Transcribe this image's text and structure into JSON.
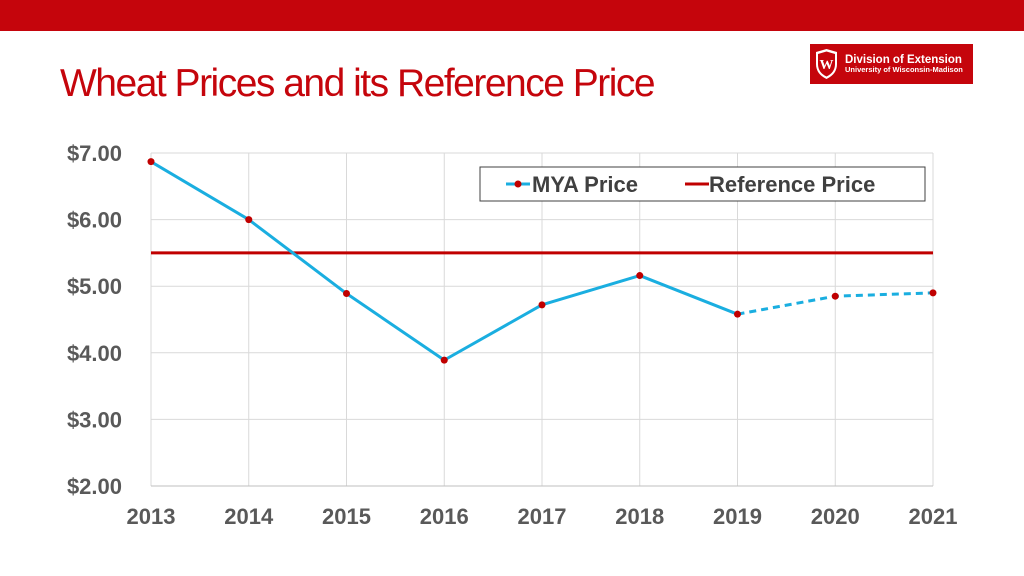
{
  "slide": {
    "title": "Wheat Prices and its Reference Price"
  },
  "logo": {
    "line1": "Division of Extension",
    "line2": "University of Wisconsin-Madison",
    "crest_letter": "W"
  },
  "colors": {
    "brand_red": "#c5050c",
    "mya_line": "#1aaee0",
    "marker": "#c00000",
    "reference_line": "#c00000",
    "grid": "#d9d9d9",
    "tick_text": "#595959"
  },
  "chart_data": {
    "type": "line",
    "x": [
      2013,
      2014,
      2015,
      2016,
      2017,
      2018,
      2019,
      2020,
      2021
    ],
    "xlim": [
      2013,
      2021
    ],
    "ylim": [
      2.0,
      7.0
    ],
    "y_ticks": [
      "$2.00",
      "$3.00",
      "$4.00",
      "$5.00",
      "$6.00",
      "$7.00"
    ],
    "x_ticks": [
      "2013",
      "2014",
      "2015",
      "2016",
      "2017",
      "2018",
      "2019",
      "2020",
      "2021"
    ],
    "grid": true,
    "legend_position": "top-right",
    "series": [
      {
        "name": "MYA Price",
        "values": [
          6.87,
          6.0,
          4.89,
          3.89,
          4.72,
          5.16,
          4.58,
          4.85,
          4.9
        ],
        "style": "solid through 2019, dashed 2019-2021",
        "dashed_from": 2019
      },
      {
        "name": "Reference Price",
        "values": [
          5.5,
          5.5,
          5.5,
          5.5,
          5.5,
          5.5,
          5.5,
          5.5,
          5.5
        ],
        "style": "solid"
      }
    ]
  }
}
